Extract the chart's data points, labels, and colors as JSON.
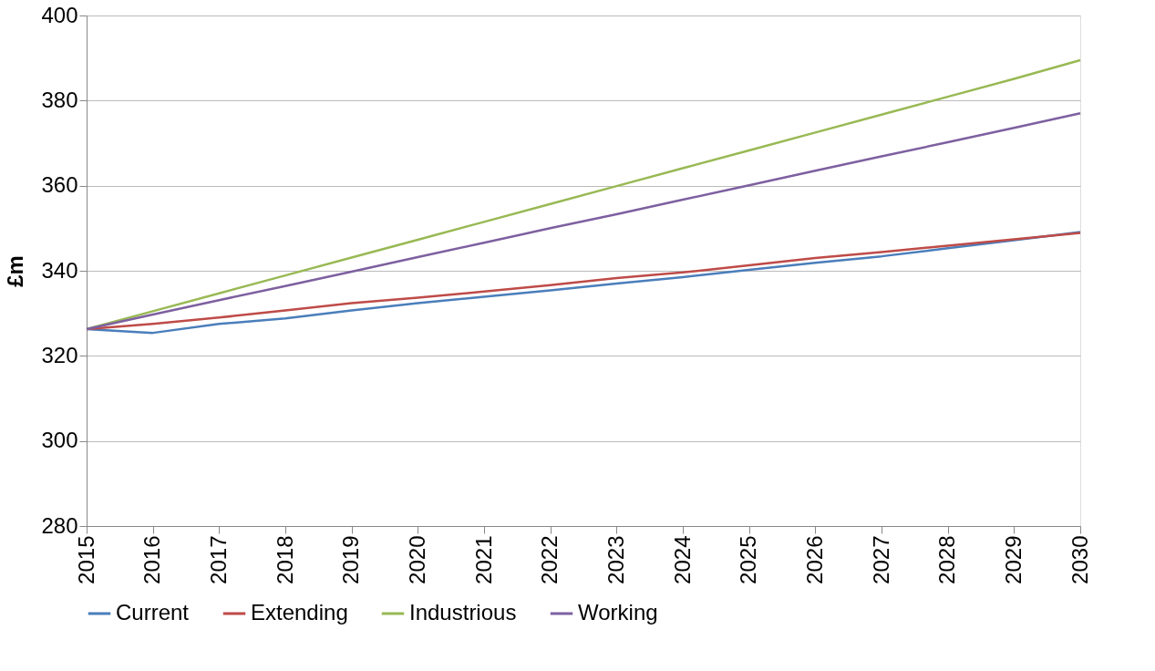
{
  "chart_data": {
    "type": "line",
    "ylabel": "£m",
    "categories": [
      "2015",
      "2016",
      "2017",
      "2018",
      "2019",
      "2020",
      "2021",
      "2022",
      "2023",
      "2024",
      "2025",
      "2026",
      "2027",
      "2028",
      "2029",
      "2030"
    ],
    "series": [
      {
        "name": "Current",
        "color": "#4a7ebb",
        "values": [
          326.3,
          325.4,
          327.5,
          328.8,
          330.7,
          332.4,
          333.9,
          335.4,
          337.0,
          338.5,
          340.2,
          341.9,
          343.4,
          345.3,
          347.2,
          349.1
        ]
      },
      {
        "name": "Extending",
        "color": "#be4b48",
        "values": [
          326.3,
          327.5,
          329.0,
          330.7,
          332.4,
          333.7,
          335.1,
          336.6,
          338.3,
          339.6,
          341.3,
          343.0,
          344.4,
          345.9,
          347.4,
          348.9
        ]
      },
      {
        "name": "Industrious",
        "color": "#98b954",
        "values": [
          326.3,
          330.5,
          334.7,
          338.9,
          343.1,
          347.3,
          351.5,
          355.7,
          359.9,
          364.1,
          368.3,
          372.5,
          376.7,
          380.9,
          385.1,
          389.5
        ]
      },
      {
        "name": "Working",
        "color": "#7d60a0",
        "values": [
          326.3,
          329.7,
          333.1,
          336.4,
          339.8,
          343.2,
          346.6,
          350.0,
          353.3,
          356.7,
          360.1,
          363.5,
          366.9,
          370.2,
          373.6,
          377.0
        ]
      }
    ],
    "ylim": [
      280,
      400
    ],
    "yticks": [
      280,
      300,
      320,
      340,
      360,
      380,
      400
    ],
    "grid": "y",
    "legend": "bottom",
    "marker": "none",
    "line_style": "solid"
  }
}
